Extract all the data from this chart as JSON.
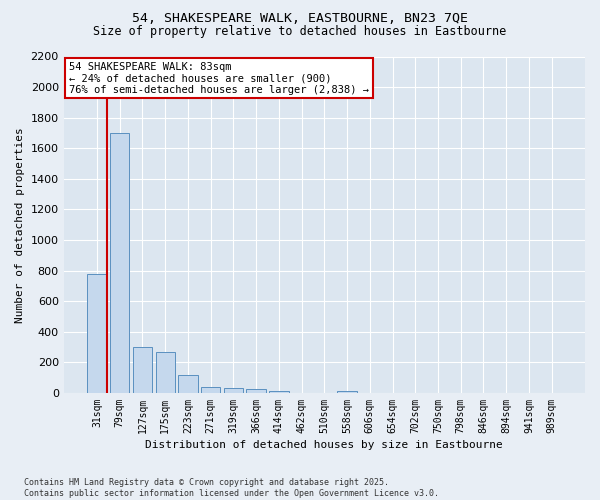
{
  "title_line1": "54, SHAKESPEARE WALK, EASTBOURNE, BN23 7QE",
  "title_line2": "Size of property relative to detached houses in Eastbourne",
  "xlabel": "Distribution of detached houses by size in Eastbourne",
  "ylabel": "Number of detached properties",
  "categories": [
    "31sqm",
    "79sqm",
    "127sqm",
    "175sqm",
    "223sqm",
    "271sqm",
    "319sqm",
    "366sqm",
    "414sqm",
    "462sqm",
    "510sqm",
    "558sqm",
    "606sqm",
    "654sqm",
    "702sqm",
    "750sqm",
    "798sqm",
    "846sqm",
    "894sqm",
    "941sqm",
    "989sqm"
  ],
  "values": [
    780,
    1700,
    300,
    265,
    120,
    40,
    35,
    25,
    12,
    0,
    0,
    12,
    0,
    0,
    0,
    0,
    0,
    0,
    0,
    0,
    0
  ],
  "bar_color": "#c5d8ed",
  "bar_edge_color": "#5a90c0",
  "vline_color": "#cc0000",
  "annotation_title": "54 SHAKESPEARE WALK: 83sqm",
  "annotation_line1": "← 24% of detached houses are smaller (900)",
  "annotation_line2": "76% of semi-detached houses are larger (2,838) →",
  "annotation_box_color": "#ffffff",
  "annotation_box_edge_color": "#cc0000",
  "ylim_max": 2200,
  "yticks": [
    0,
    200,
    400,
    600,
    800,
    1000,
    1200,
    1400,
    1600,
    1800,
    2000,
    2200
  ],
  "background_color": "#e8eef5",
  "plot_bg_color": "#dce6f0",
  "grid_color": "#ffffff",
  "footnote_line1": "Contains HM Land Registry data © Crown copyright and database right 2025.",
  "footnote_line2": "Contains public sector information licensed under the Open Government Licence v3.0."
}
